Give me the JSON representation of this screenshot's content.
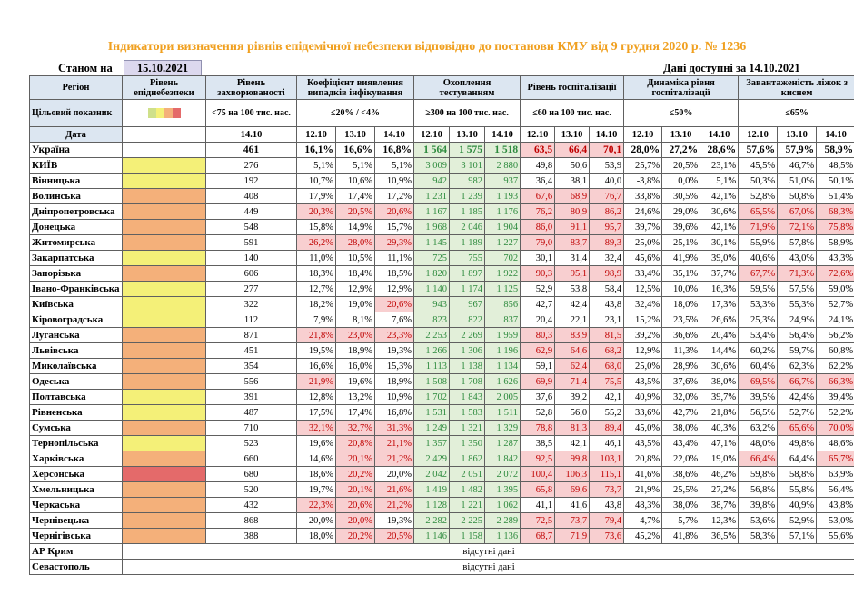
{
  "title": "Індикатори визначення рівнів епідемічної небезпеки відповідно до постанови КМУ від 9 грудня 2020 р. № 1236",
  "as_of_label": "Станом на",
  "as_of_date": "15.10.2021",
  "available_label": "Дані доступні за 14.10.2021",
  "colors": {
    "yellow": "#f4f078",
    "orange": "#f4b07a",
    "red": "#e46a6a",
    "green_bg": "#e2efd9",
    "red_bg": "#f8cfd0",
    "title": "#f0a020"
  },
  "headers": {
    "region": "Регіон",
    "level": "Рівень епіднебезпеки",
    "incidence": "Рівень захворюваності",
    "coef": "Коефіцієнт виявлення випадків інфікування",
    "testing": "Охоплення тестуванням",
    "hosp": "Рівень госпіталізації",
    "dyn": "Динаміка рівня госпіталізації",
    "beds": "Завантаженість ліжок з киснем"
  },
  "target": {
    "label": "Цільовий показник",
    "incidence": "<75 на 100 тис. нас.",
    "coef": "≤20% / <4%",
    "testing": "≥300 на 100 тис. нас.",
    "hosp": "≤60 на 100 тис. нас.",
    "dyn": "≤50%",
    "beds": "≤65%"
  },
  "dates_label": "Дата",
  "dates": [
    "14.10",
    "12.10",
    "13.10",
    "14.10"
  ],
  "ukraine": {
    "name": "Україна",
    "incidence": "461",
    "coef": [
      "16,1%",
      "16,6%",
      "16,8%"
    ],
    "testing": [
      "1 564",
      "1 575",
      "1 518"
    ],
    "hosp": [
      "63,5",
      "66,4",
      "70,1"
    ],
    "dyn": [
      "28,0%",
      "27,2%",
      "28,6%"
    ],
    "beds": [
      "57,6%",
      "57,9%",
      "58,9%"
    ]
  },
  "rows": [
    {
      "name": "КИЇВ",
      "level": "yellow",
      "incidence": "276",
      "coef": [
        "5,1%",
        "5,1%",
        "5,1%"
      ],
      "coef_hl": [
        0,
        0,
        0
      ],
      "testing": [
        "3 009",
        "3 101",
        "2 880"
      ],
      "hosp": [
        "49,8",
        "50,6",
        "53,9"
      ],
      "hosp_hl": [
        0,
        0,
        0
      ],
      "dyn": [
        "25,7%",
        "20,5%",
        "23,1%"
      ],
      "beds": [
        "45,5%",
        "46,7%",
        "48,5%"
      ],
      "beds_hl": [
        0,
        0,
        0
      ]
    },
    {
      "name": "Вінницька",
      "level": "yellow",
      "incidence": "192",
      "coef": [
        "10,7%",
        "10,6%",
        "10,9%"
      ],
      "coef_hl": [
        0,
        0,
        0
      ],
      "testing": [
        "942",
        "982",
        "937"
      ],
      "hosp": [
        "36,4",
        "38,1",
        "40,0"
      ],
      "hosp_hl": [
        0,
        0,
        0
      ],
      "dyn": [
        "-3,8%",
        "0,0%",
        "5,1%"
      ],
      "beds": [
        "50,3%",
        "51,0%",
        "50,1%"
      ],
      "beds_hl": [
        0,
        0,
        0
      ]
    },
    {
      "name": "Волинська",
      "level": "orange",
      "incidence": "408",
      "coef": [
        "17,9%",
        "17,4%",
        "17,2%"
      ],
      "coef_hl": [
        0,
        0,
        0
      ],
      "testing": [
        "1 231",
        "1 239",
        "1 193"
      ],
      "hosp": [
        "67,6",
        "68,9",
        "76,7"
      ],
      "hosp_hl": [
        1,
        1,
        1
      ],
      "dyn": [
        "33,8%",
        "30,5%",
        "42,1%"
      ],
      "beds": [
        "52,8%",
        "50,8%",
        "51,4%"
      ],
      "beds_hl": [
        0,
        0,
        0
      ]
    },
    {
      "name": "Дніпропетровська",
      "level": "orange",
      "incidence": "449",
      "coef": [
        "20,3%",
        "20,5%",
        "20,6%"
      ],
      "coef_hl": [
        1,
        1,
        1
      ],
      "testing": [
        "1 167",
        "1 185",
        "1 176"
      ],
      "hosp": [
        "76,2",
        "80,9",
        "86,2"
      ],
      "hosp_hl": [
        1,
        1,
        1
      ],
      "dyn": [
        "24,6%",
        "29,0%",
        "30,6%"
      ],
      "beds": [
        "65,5%",
        "67,0%",
        "68,3%"
      ],
      "beds_hl": [
        1,
        1,
        1
      ]
    },
    {
      "name": "Донецька",
      "level": "orange",
      "incidence": "548",
      "coef": [
        "15,8%",
        "14,9%",
        "15,7%"
      ],
      "coef_hl": [
        0,
        0,
        0
      ],
      "testing": [
        "1 968",
        "2 046",
        "1 904"
      ],
      "hosp": [
        "86,0",
        "91,1",
        "95,7"
      ],
      "hosp_hl": [
        1,
        1,
        1
      ],
      "dyn": [
        "39,7%",
        "39,6%",
        "42,1%"
      ],
      "beds": [
        "71,9%",
        "72,1%",
        "75,8%"
      ],
      "beds_hl": [
        1,
        1,
        1
      ]
    },
    {
      "name": "Житомирська",
      "level": "orange",
      "incidence": "591",
      "coef": [
        "26,2%",
        "28,0%",
        "29,3%"
      ],
      "coef_hl": [
        1,
        1,
        1
      ],
      "testing": [
        "1 145",
        "1 189",
        "1 227"
      ],
      "hosp": [
        "79,0",
        "83,7",
        "89,3"
      ],
      "hosp_hl": [
        1,
        1,
        1
      ],
      "dyn": [
        "25,0%",
        "25,1%",
        "30,1%"
      ],
      "beds": [
        "55,9%",
        "57,8%",
        "58,9%"
      ],
      "beds_hl": [
        0,
        0,
        0
      ]
    },
    {
      "name": "Закарпатська",
      "level": "yellow",
      "incidence": "140",
      "coef": [
        "11,0%",
        "10,5%",
        "11,1%"
      ],
      "coef_hl": [
        0,
        0,
        0
      ],
      "testing": [
        "725",
        "755",
        "702"
      ],
      "hosp": [
        "30,1",
        "31,4",
        "32,4"
      ],
      "hosp_hl": [
        0,
        0,
        0
      ],
      "dyn": [
        "45,6%",
        "41,9%",
        "39,0%"
      ],
      "beds": [
        "40,6%",
        "43,0%",
        "43,3%"
      ],
      "beds_hl": [
        0,
        0,
        0
      ]
    },
    {
      "name": "Запорізька",
      "level": "orange",
      "incidence": "606",
      "coef": [
        "18,3%",
        "18,4%",
        "18,5%"
      ],
      "coef_hl": [
        0,
        0,
        0
      ],
      "testing": [
        "1 820",
        "1 897",
        "1 922"
      ],
      "hosp": [
        "90,3",
        "95,1",
        "98,9"
      ],
      "hosp_hl": [
        1,
        1,
        1
      ],
      "dyn": [
        "33,4%",
        "35,1%",
        "37,7%"
      ],
      "beds": [
        "67,7%",
        "71,3%",
        "72,6%"
      ],
      "beds_hl": [
        1,
        1,
        1
      ]
    },
    {
      "name": "Івано-Франківська",
      "level": "yellow",
      "incidence": "277",
      "coef": [
        "12,7%",
        "12,9%",
        "12,9%"
      ],
      "coef_hl": [
        0,
        0,
        0
      ],
      "testing": [
        "1 140",
        "1 174",
        "1 125"
      ],
      "hosp": [
        "52,9",
        "53,8",
        "58,4"
      ],
      "hosp_hl": [
        0,
        0,
        0
      ],
      "dyn": [
        "12,5%",
        "10,0%",
        "16,3%"
      ],
      "beds": [
        "59,5%",
        "57,5%",
        "59,0%"
      ],
      "beds_hl": [
        0,
        0,
        0
      ]
    },
    {
      "name": "Київська",
      "level": "yellow",
      "incidence": "322",
      "coef": [
        "18,2%",
        "19,0%",
        "20,6%"
      ],
      "coef_hl": [
        0,
        0,
        1
      ],
      "testing": [
        "943",
        "967",
        "856"
      ],
      "hosp": [
        "42,7",
        "42,4",
        "43,8"
      ],
      "hosp_hl": [
        0,
        0,
        0
      ],
      "dyn": [
        "32,4%",
        "18,0%",
        "17,3%"
      ],
      "beds": [
        "53,3%",
        "55,3%",
        "52,7%"
      ],
      "beds_hl": [
        0,
        0,
        0
      ]
    },
    {
      "name": "Кіровоградська",
      "level": "yellow",
      "incidence": "112",
      "coef": [
        "7,9%",
        "8,1%",
        "7,6%"
      ],
      "coef_hl": [
        0,
        0,
        0
      ],
      "testing": [
        "823",
        "822",
        "837"
      ],
      "hosp": [
        "20,4",
        "22,1",
        "23,1"
      ],
      "hosp_hl": [
        0,
        0,
        0
      ],
      "dyn": [
        "15,2%",
        "23,5%",
        "26,6%"
      ],
      "beds": [
        "25,3%",
        "24,9%",
        "24,1%"
      ],
      "beds_hl": [
        0,
        0,
        0
      ]
    },
    {
      "name": "Луганська",
      "level": "orange",
      "incidence": "871",
      "coef": [
        "21,8%",
        "23,0%",
        "23,3%"
      ],
      "coef_hl": [
        1,
        1,
        1
      ],
      "testing": [
        "2 253",
        "2 269",
        "1 959"
      ],
      "hosp": [
        "80,3",
        "83,9",
        "81,5"
      ],
      "hosp_hl": [
        1,
        1,
        1
      ],
      "dyn": [
        "39,2%",
        "36,6%",
        "20,4%"
      ],
      "beds": [
        "53,4%",
        "56,4%",
        "56,2%"
      ],
      "beds_hl": [
        0,
        0,
        0
      ]
    },
    {
      "name": "Львівська",
      "level": "orange",
      "incidence": "451",
      "coef": [
        "19,5%",
        "18,9%",
        "19,3%"
      ],
      "coef_hl": [
        0,
        0,
        0
      ],
      "testing": [
        "1 266",
        "1 306",
        "1 196"
      ],
      "hosp": [
        "62,9",
        "64,6",
        "68,2"
      ],
      "hosp_hl": [
        1,
        1,
        1
      ],
      "dyn": [
        "12,9%",
        "11,3%",
        "14,4%"
      ],
      "beds": [
        "60,2%",
        "59,7%",
        "60,8%"
      ],
      "beds_hl": [
        0,
        0,
        0
      ]
    },
    {
      "name": "Миколаївська",
      "level": "orange",
      "incidence": "354",
      "coef": [
        "16,6%",
        "16,0%",
        "15,3%"
      ],
      "coef_hl": [
        0,
        0,
        0
      ],
      "testing": [
        "1 113",
        "1 138",
        "1 134"
      ],
      "hosp": [
        "59,1",
        "62,4",
        "68,0"
      ],
      "hosp_hl": [
        0,
        1,
        1
      ],
      "dyn": [
        "25,0%",
        "28,9%",
        "30,6%"
      ],
      "beds": [
        "60,4%",
        "62,3%",
        "62,2%"
      ],
      "beds_hl": [
        0,
        0,
        0
      ]
    },
    {
      "name": "Одеська",
      "level": "orange",
      "incidence": "556",
      "coef": [
        "21,9%",
        "19,6%",
        "18,9%"
      ],
      "coef_hl": [
        1,
        0,
        0
      ],
      "testing": [
        "1 508",
        "1 708",
        "1 626"
      ],
      "hosp": [
        "69,9",
        "71,4",
        "75,5"
      ],
      "hosp_hl": [
        1,
        1,
        1
      ],
      "dyn": [
        "43,5%",
        "37,6%",
        "38,0%"
      ],
      "beds": [
        "69,5%",
        "66,7%",
        "66,3%"
      ],
      "beds_hl": [
        1,
        1,
        1
      ]
    },
    {
      "name": "Полтавська",
      "level": "yellow",
      "incidence": "391",
      "coef": [
        "12,8%",
        "13,2%",
        "10,9%"
      ],
      "coef_hl": [
        0,
        0,
        0
      ],
      "testing": [
        "1 702",
        "1 843",
        "2 005"
      ],
      "hosp": [
        "37,6",
        "39,2",
        "42,1"
      ],
      "hosp_hl": [
        0,
        0,
        0
      ],
      "dyn": [
        "40,9%",
        "32,0%",
        "39,7%"
      ],
      "beds": [
        "39,5%",
        "42,4%",
        "39,4%"
      ],
      "beds_hl": [
        0,
        0,
        0
      ]
    },
    {
      "name": "Рівненська",
      "level": "yellow",
      "incidence": "487",
      "coef": [
        "17,5%",
        "17,4%",
        "16,8%"
      ],
      "coef_hl": [
        0,
        0,
        0
      ],
      "testing": [
        "1 531",
        "1 583",
        "1 511"
      ],
      "hosp": [
        "52,8",
        "56,0",
        "55,2"
      ],
      "hosp_hl": [
        0,
        0,
        0
      ],
      "dyn": [
        "33,6%",
        "42,7%",
        "21,8%"
      ],
      "beds": [
        "56,5%",
        "52,7%",
        "52,2%"
      ],
      "beds_hl": [
        0,
        0,
        0
      ]
    },
    {
      "name": "Сумська",
      "level": "orange",
      "incidence": "710",
      "coef": [
        "32,1%",
        "32,7%",
        "31,3%"
      ],
      "coef_hl": [
        1,
        1,
        1
      ],
      "testing": [
        "1 249",
        "1 321",
        "1 329"
      ],
      "hosp": [
        "78,8",
        "81,3",
        "89,4"
      ],
      "hosp_hl": [
        1,
        1,
        1
      ],
      "dyn": [
        "45,0%",
        "38,0%",
        "40,3%"
      ],
      "beds": [
        "63,2%",
        "65,6%",
        "70,0%"
      ],
      "beds_hl": [
        0,
        1,
        1
      ]
    },
    {
      "name": "Тернопільська",
      "level": "yellow",
      "incidence": "523",
      "coef": [
        "19,6%",
        "20,8%",
        "21,1%"
      ],
      "coef_hl": [
        0,
        1,
        1
      ],
      "testing": [
        "1 357",
        "1 350",
        "1 287"
      ],
      "hosp": [
        "38,5",
        "42,1",
        "46,1"
      ],
      "hosp_hl": [
        0,
        0,
        0
      ],
      "dyn": [
        "43,5%",
        "43,4%",
        "47,1%"
      ],
      "beds": [
        "48,0%",
        "49,8%",
        "48,6%"
      ],
      "beds_hl": [
        0,
        0,
        0
      ]
    },
    {
      "name": "Харківська",
      "level": "orange",
      "incidence": "660",
      "coef": [
        "14,6%",
        "20,1%",
        "21,2%"
      ],
      "coef_hl": [
        0,
        1,
        1
      ],
      "testing": [
        "2 429",
        "1 862",
        "1 842"
      ],
      "hosp": [
        "92,5",
        "99,8",
        "103,1"
      ],
      "hosp_hl": [
        1,
        1,
        1
      ],
      "dyn": [
        "20,8%",
        "22,0%",
        "19,0%"
      ],
      "beds": [
        "66,4%",
        "64,4%",
        "65,7%"
      ],
      "beds_hl": [
        1,
        0,
        1
      ]
    },
    {
      "name": "Херсонська",
      "level": "red",
      "incidence": "680",
      "coef": [
        "18,6%",
        "20,2%",
        "20,0%"
      ],
      "coef_hl": [
        0,
        1,
        0
      ],
      "testing": [
        "2 042",
        "2 051",
        "2 072"
      ],
      "hosp": [
        "100,4",
        "106,3",
        "115,1"
      ],
      "hosp_hl": [
        1,
        1,
        1
      ],
      "dyn": [
        "41,6%",
        "38,6%",
        "46,2%"
      ],
      "beds": [
        "59,8%",
        "58,8%",
        "63,9%"
      ],
      "beds_hl": [
        0,
        0,
        0
      ]
    },
    {
      "name": "Хмельницька",
      "level": "orange",
      "incidence": "520",
      "coef": [
        "19,7%",
        "20,1%",
        "21,6%"
      ],
      "coef_hl": [
        0,
        1,
        1
      ],
      "testing": [
        "1 419",
        "1 482",
        "1 395"
      ],
      "hosp": [
        "65,8",
        "69,6",
        "73,7"
      ],
      "hosp_hl": [
        1,
        1,
        1
      ],
      "dyn": [
        "21,9%",
        "25,5%",
        "27,2%"
      ],
      "beds": [
        "56,8%",
        "55,8%",
        "56,4%"
      ],
      "beds_hl": [
        0,
        0,
        0
      ]
    },
    {
      "name": "Черкаська",
      "level": "orange",
      "incidence": "432",
      "coef": [
        "22,3%",
        "20,6%",
        "21,2%"
      ],
      "coef_hl": [
        1,
        1,
        1
      ],
      "testing": [
        "1 128",
        "1 221",
        "1 062"
      ],
      "hosp": [
        "41,1",
        "41,6",
        "43,8"
      ],
      "hosp_hl": [
        0,
        0,
        0
      ],
      "dyn": [
        "48,3%",
        "38,0%",
        "38,7%"
      ],
      "beds": [
        "39,8%",
        "40,9%",
        "43,8%"
      ],
      "beds_hl": [
        0,
        0,
        0
      ]
    },
    {
      "name": "Чернівецька",
      "level": "orange",
      "incidence": "868",
      "coef": [
        "20,0%",
        "20,0%",
        "19,3%"
      ],
      "coef_hl": [
        0,
        1,
        0
      ],
      "testing": [
        "2 282",
        "2 225",
        "2 289"
      ],
      "hosp": [
        "72,5",
        "73,7",
        "79,4"
      ],
      "hosp_hl": [
        1,
        1,
        1
      ],
      "dyn": [
        "4,7%",
        "5,7%",
        "12,3%"
      ],
      "beds": [
        "53,6%",
        "52,9%",
        "53,0%"
      ],
      "beds_hl": [
        0,
        0,
        0
      ]
    },
    {
      "name": "Чернігівська",
      "level": "orange",
      "incidence": "388",
      "coef": [
        "18,0%",
        "20,2%",
        "20,5%"
      ],
      "coef_hl": [
        0,
        1,
        1
      ],
      "testing": [
        "1 146",
        "1 158",
        "1 136"
      ],
      "hosp": [
        "68,7",
        "71,9",
        "73,6"
      ],
      "hosp_hl": [
        1,
        1,
        1
      ],
      "dyn": [
        "45,2%",
        "41,8%",
        "36,5%"
      ],
      "beds": [
        "58,3%",
        "57,1%",
        "55,6%"
      ],
      "beds_hl": [
        0,
        0,
        0
      ]
    }
  ],
  "missing": [
    {
      "name": "АР Крим",
      "text": "відсутні дані"
    },
    {
      "name": "Севастополь",
      "text": "відсутні дані"
    }
  ]
}
